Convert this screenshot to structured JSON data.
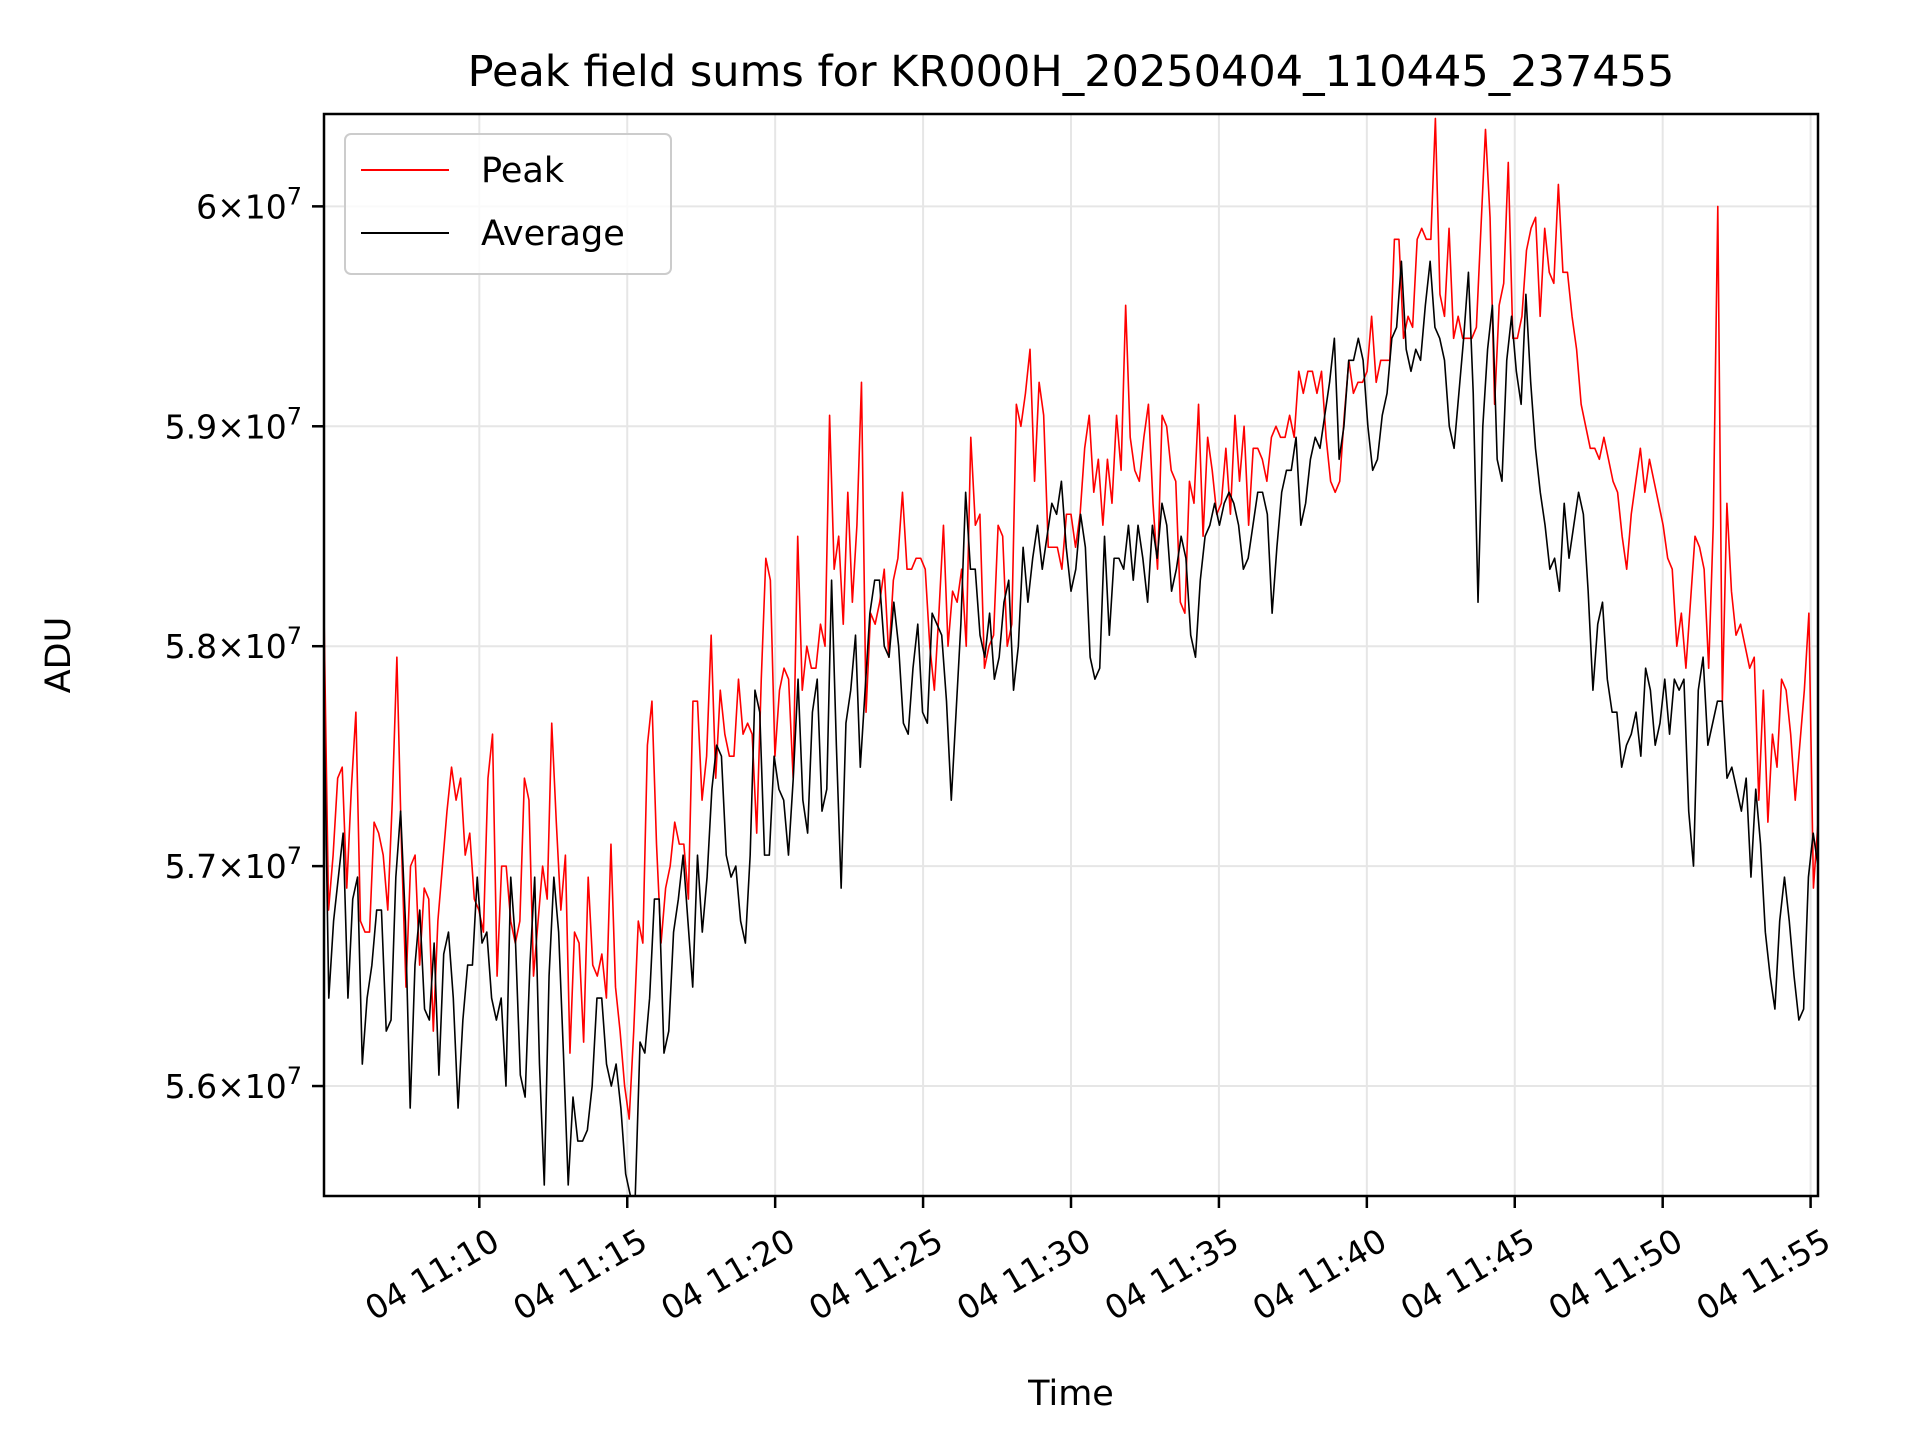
{
  "chart_data": {
    "type": "line",
    "title": "Peak field sums for KR000H_20250404_110445_237455",
    "xlabel": "Time",
    "ylabel": "ADU",
    "x_start": "2025-04-04 11:04:45",
    "x_end": "2025-04-04 11:55:15",
    "xlim": [
      "2025-04-04 11:04:45",
      "2025-04-04 11:55:15"
    ],
    "ylim": [
      55500000,
      60420000
    ],
    "x_ticks": [
      {
        "value": "2025-04-04 11:10:00",
        "label": "04 11:10"
      },
      {
        "value": "2025-04-04 11:15:00",
        "label": "04 11:15"
      },
      {
        "value": "2025-04-04 11:20:00",
        "label": "04 11:20"
      },
      {
        "value": "2025-04-04 11:25:00",
        "label": "04 11:25"
      },
      {
        "value": "2025-04-04 11:30:00",
        "label": "04 11:30"
      },
      {
        "value": "2025-04-04 11:35:00",
        "label": "04 11:35"
      },
      {
        "value": "2025-04-04 11:40:00",
        "label": "04 11:40"
      },
      {
        "value": "2025-04-04 11:45:00",
        "label": "04 11:45"
      },
      {
        "value": "2025-04-04 11:50:00",
        "label": "04 11:50"
      },
      {
        "value": "2025-04-04 11:55:00",
        "label": "04 11:55"
      }
    ],
    "y_ticks": [
      {
        "value": 56000000,
        "mantissa": "5.6",
        "base": "10",
        "exp": "7"
      },
      {
        "value": 57000000,
        "mantissa": "5.7",
        "base": "10",
        "exp": "7"
      },
      {
        "value": 58000000,
        "mantissa": "5.8",
        "base": "10",
        "exp": "7"
      },
      {
        "value": 59000000,
        "mantissa": "5.9",
        "base": "10",
        "exp": "7"
      },
      {
        "value": 60000000,
        "mantissa": "6",
        "base": "10",
        "exp": "7"
      }
    ],
    "grid": true,
    "legend": "top-left",
    "series": [
      {
        "name": "Peak",
        "color": "#ff0000",
        "values": [
          58150000,
          56800000,
          57050000,
          57400000,
          57450000,
          56900000,
          57350000,
          57700000,
          56750000,
          56700000,
          56700000,
          57200000,
          57150000,
          57050000,
          56800000,
          57300000,
          57950000,
          57100000,
          56450000,
          57000000,
          57050000,
          56550000,
          56900000,
          56850000,
          56250000,
          56750000,
          57000000,
          57250000,
          57450000,
          57300000,
          57400000,
          57050000,
          57150000,
          56850000,
          56800000,
          56700000,
          57400000,
          57600000,
          56500000,
          57000000,
          57000000,
          56750000,
          56650000,
          56750000,
          57400000,
          57300000,
          56500000,
          56750000,
          57000000,
          56850000,
          57650000,
          57200000,
          56800000,
          57050000,
          56150000,
          56700000,
          56650000,
          56200000,
          56950000,
          56550000,
          56500000,
          56600000,
          56400000,
          57100000,
          56450000,
          56250000,
          56000000,
          55850000,
          56250000,
          56750000,
          56650000,
          57550000,
          57750000,
          57100000,
          56650000,
          56900000,
          57000000,
          57200000,
          57100000,
          57100000,
          56850000,
          57750000,
          57750000,
          57300000,
          57500000,
          58050000,
          57400000,
          57800000,
          57600000,
          57500000,
          57500000,
          57850000,
          57600000,
          57650000,
          57600000,
          57150000,
          57850000,
          58400000,
          58300000,
          57500000,
          57800000,
          57900000,
          57850000,
          57400000,
          58500000,
          57800000,
          58000000,
          57900000,
          57900000,
          58100000,
          58000000,
          59050000,
          58350000,
          58500000,
          58100000,
          58700000,
          58200000,
          58550000,
          59200000,
          57700000,
          58150000,
          58100000,
          58200000,
          58350000,
          57950000,
          58300000,
          58400000,
          58700000,
          58350000,
          58350000,
          58400000,
          58400000,
          58350000,
          58000000,
          57800000,
          58150000,
          58550000,
          58000000,
          58250000,
          58200000,
          58350000,
          58000000,
          58950000,
          58550000,
          58600000,
          57900000,
          58000000,
          58050000,
          58550000,
          58500000,
          58000000,
          58100000,
          59100000,
          59000000,
          59150000,
          59350000,
          58750000,
          59200000,
          59050000,
          58450000,
          58450000,
          58450000,
          58350000,
          58600000,
          58600000,
          58450000,
          58600000,
          58900000,
          59050000,
          58700000,
          58850000,
          58550000,
          58850000,
          58650000,
          59050000,
          58800000,
          59550000,
          58950000,
          58800000,
          58750000,
          58950000,
          59100000,
          58650000,
          58350000,
          59050000,
          59000000,
          58800000,
          58750000,
          58200000,
          58150000,
          58750000,
          58650000,
          59100000,
          58500000,
          58950000,
          58800000,
          58600000,
          58650000,
          58900000,
          58600000,
          59050000,
          58750000,
          59000000,
          58550000,
          58900000,
          58900000,
          58850000,
          58750000,
          58950000,
          59000000,
          58950000,
          58950000,
          59050000,
          58950000,
          59250000,
          59150000,
          59250000,
          59250000,
          59150000,
          59250000,
          58950000,
          58750000,
          58700000,
          58750000,
          59050000,
          59300000,
          59150000,
          59200000,
          59200000,
          59250000,
          59500000,
          59200000,
          59300000,
          59300000,
          59300000,
          59850000,
          59850000,
          59400000,
          59500000,
          59450000,
          59850000,
          59900000,
          59850000,
          59850000,
          60400000,
          59600000,
          59500000,
          59900000,
          59400000,
          59500000,
          59400000,
          59400000,
          59400000,
          59450000,
          59900000,
          60350000,
          59950000,
          59100000,
          59550000,
          59650000,
          60200000,
          59400000,
          59400000,
          59500000,
          59800000,
          59900000,
          59950000,
          59500000,
          59900000,
          59700000,
          59650000,
          60100000,
          59700000,
          59700000,
          59500000,
          59350000,
          59100000,
          59000000,
          58900000,
          58900000,
          58850000,
          58950000,
          58850000,
          58750000,
          58700000,
          58500000,
          58350000,
          58600000,
          58750000,
          58900000,
          58700000,
          58850000,
          58750000,
          58650000,
          58550000,
          58400000,
          58350000,
          58000000,
          58150000,
          57900000,
          58200000,
          58500000,
          58450000,
          58350000,
          57900000,
          58550000,
          60000000,
          57750000,
          58650000,
          58250000,
          58050000,
          58100000,
          58000000,
          57900000,
          57950000,
          57300000,
          57800000,
          57200000,
          57600000,
          57450000,
          57850000,
          57800000,
          57600000,
          57300000,
          57550000,
          57800000,
          58150000,
          56900000,
          57200000
        ]
      },
      {
        "name": "Average",
        "color": "#000000",
        "values": [
          57750000,
          56400000,
          56750000,
          56950000,
          57150000,
          56400000,
          56850000,
          56950000,
          56100000,
          56400000,
          56550000,
          56800000,
          56800000,
          56250000,
          56300000,
          56950000,
          57250000,
          56750000,
          55900000,
          56550000,
          56800000,
          56350000,
          56300000,
          56650000,
          56050000,
          56600000,
          56700000,
          56400000,
          55900000,
          56300000,
          56550000,
          56550000,
          56950000,
          56650000,
          56700000,
          56400000,
          56300000,
          56400000,
          56000000,
          56950000,
          56650000,
          56050000,
          55950000,
          56550000,
          56950000,
          56100000,
          55550000,
          56500000,
          56950000,
          56700000,
          56150000,
          55550000,
          55950000,
          55750000,
          55750000,
          55800000,
          56000000,
          56400000,
          56400000,
          56100000,
          56000000,
          56100000,
          55900000,
          55600000,
          55500000,
          55500000,
          56200000,
          56150000,
          56400000,
          56850000,
          56850000,
          56150000,
          56250000,
          56700000,
          56850000,
          57050000,
          56750000,
          56450000,
          57050000,
          56700000,
          56950000,
          57350000,
          57550000,
          57500000,
          57050000,
          56950000,
          57000000,
          56750000,
          56650000,
          57050000,
          57800000,
          57700000,
          57050000,
          57050000,
          57500000,
          57350000,
          57300000,
          57050000,
          57400000,
          57850000,
          57300000,
          57150000,
          57700000,
          57850000,
          57250000,
          57350000,
          58300000,
          57550000,
          56900000,
          57650000,
          57800000,
          58050000,
          57450000,
          57800000,
          58150000,
          58300000,
          58300000,
          58000000,
          57950000,
          58200000,
          58000000,
          57650000,
          57600000,
          57900000,
          58100000,
          57700000,
          57650000,
          58150000,
          58100000,
          58050000,
          57750000,
          57300000,
          57700000,
          58100000,
          58700000,
          58350000,
          58350000,
          58050000,
          57950000,
          58150000,
          57850000,
          57950000,
          58200000,
          58300000,
          57800000,
          58000000,
          58450000,
          58200000,
          58400000,
          58550000,
          58350000,
          58500000,
          58650000,
          58600000,
          58750000,
          58450000,
          58250000,
          58350000,
          58600000,
          58450000,
          57950000,
          57850000,
          57900000,
          58500000,
          58050000,
          58400000,
          58400000,
          58350000,
          58550000,
          58300000,
          58550000,
          58400000,
          58200000,
          58550000,
          58400000,
          58650000,
          58550000,
          58250000,
          58350000,
          58500000,
          58400000,
          58050000,
          57950000,
          58300000,
          58500000,
          58550000,
          58650000,
          58550000,
          58650000,
          58700000,
          58650000,
          58550000,
          58350000,
          58400000,
          58550000,
          58700000,
          58700000,
          58600000,
          58150000,
          58450000,
          58700000,
          58800000,
          58800000,
          58950000,
          58550000,
          58650000,
          58850000,
          58950000,
          58900000,
          59050000,
          59200000,
          59400000,
          58850000,
          59000000,
          59300000,
          59300000,
          59400000,
          59300000,
          59000000,
          58800000,
          58850000,
          59050000,
          59150000,
          59400000,
          59450000,
          59750000,
          59350000,
          59250000,
          59350000,
          59300000,
          59550000,
          59750000,
          59450000,
          59400000,
          59300000,
          59000000,
          58900000,
          59150000,
          59400000,
          59700000,
          59150000,
          58200000,
          59000000,
          59350000,
          59550000,
          58850000,
          58750000,
          59300000,
          59500000,
          59250000,
          59100000,
          59600000,
          59200000,
          58900000,
          58700000,
          58550000,
          58350000,
          58400000,
          58250000,
          58650000,
          58400000,
          58550000,
          58700000,
          58600000,
          58250000,
          57800000,
          58100000,
          58200000,
          57850000,
          57700000,
          57700000,
          57450000,
          57550000,
          57600000,
          57700000,
          57500000,
          57900000,
          57800000,
          57550000,
          57650000,
          57850000,
          57600000,
          57850000,
          57800000,
          57850000,
          57250000,
          57000000,
          57800000,
          57950000,
          57550000,
          57650000,
          57750000,
          57750000,
          57400000,
          57450000,
          57350000,
          57250000,
          57400000,
          56950000,
          57350000,
          57100000,
          56700000,
          56500000,
          56350000,
          56750000,
          56950000,
          56750000,
          56500000,
          56300000,
          56350000,
          56950000,
          57150000,
          57000000
        ]
      }
    ]
  }
}
